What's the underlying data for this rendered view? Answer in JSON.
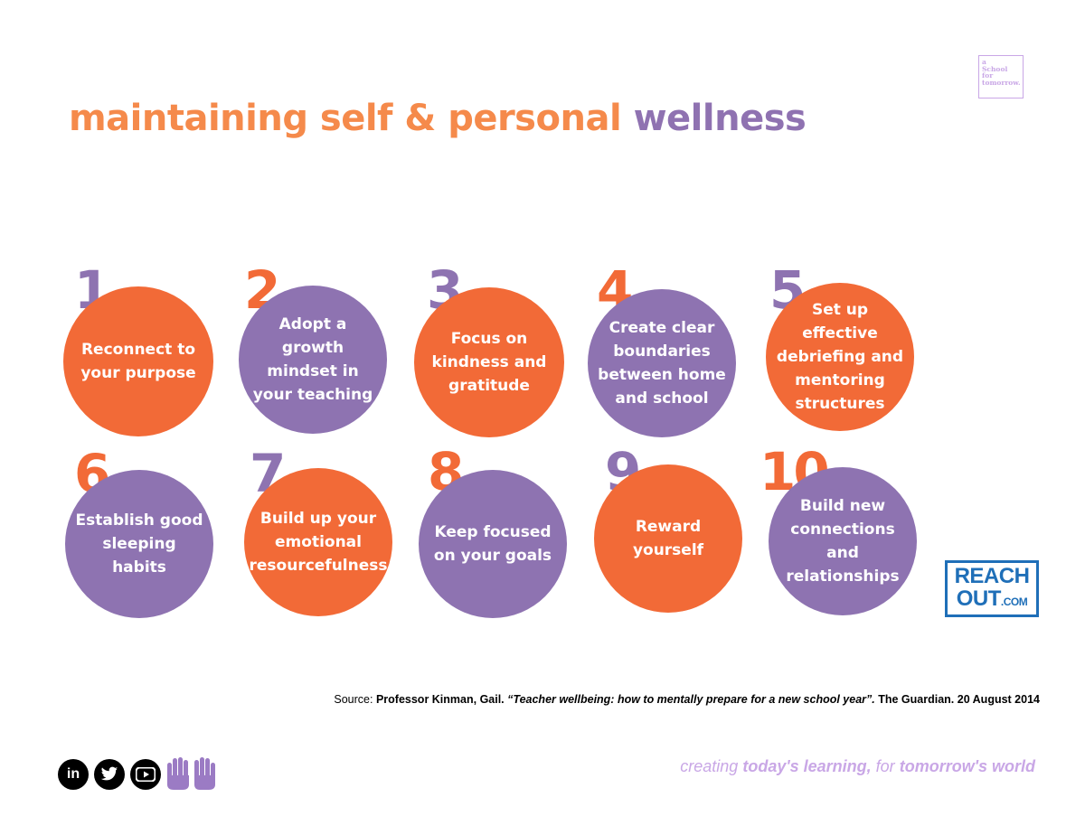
{
  "logo": {
    "line1": "a",
    "line2": "School",
    "line3": "for",
    "line4": "tomorrow."
  },
  "title": {
    "part1": "maintaining self & personal",
    "part2": "wellness"
  },
  "items": [
    {
      "number": "1",
      "text": "Reconnect to your purpose"
    },
    {
      "number": "2",
      "text": "Adopt a growth mindset in your teaching"
    },
    {
      "number": "3",
      "text": "Focus on kindness and gratitude"
    },
    {
      "number": "4",
      "text": "Create clear boundaries between home and school"
    },
    {
      "number": "5",
      "text": "Set up effective debriefing and mentoring structures"
    },
    {
      "number": "6",
      "text": "Establish good sleeping habits"
    },
    {
      "number": "7",
      "text": "Build up your emotional resourcefulness"
    },
    {
      "number": "8",
      "text": "Keep focused on your goals"
    },
    {
      "number": "9",
      "text": "Reward yourself"
    },
    {
      "number": "10",
      "text": "Build new connections and relationships"
    }
  ],
  "reachout": {
    "line1": "REACH",
    "line2": "OUT",
    "suffix": ".COM"
  },
  "source": {
    "label": "Source:",
    "author": "Professor Kinman, Gail.",
    "article": "“Teacher wellbeing: how to mentally prepare for a new school year”.",
    "publication": "The Guardian. 20 August 2014"
  },
  "social": {
    "linkedin": "in",
    "twitter_icon": "twitter-icon",
    "youtube_icon": "youtube-icon",
    "hands_icon": "hands-icon"
  },
  "tagline": {
    "p1": "creating",
    "p2": "today's learning,",
    "p3": "for",
    "p4": "tomorrow's world"
  },
  "colors": {
    "orange": "#f26a37",
    "purple": "#8e73b1",
    "title_orange": "#f58a4b",
    "lilac": "#c9a7e6",
    "blue": "#1f6fb8"
  }
}
